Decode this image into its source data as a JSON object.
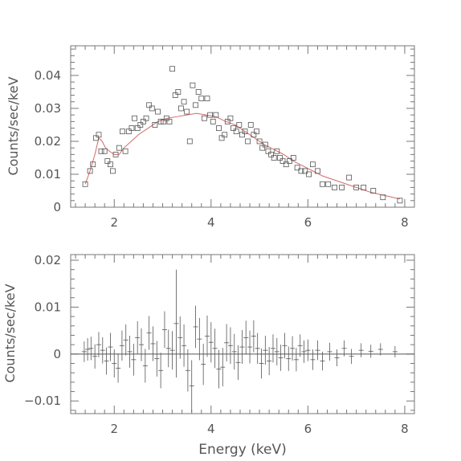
{
  "chart_data": [
    {
      "type": "scatter",
      "ylabel": "Counts/sec/keV",
      "xlim": [
        1.1,
        8.2
      ],
      "ylim": [
        0,
        0.049
      ],
      "xticks": [
        2,
        4,
        6,
        8
      ],
      "yticks": [
        0,
        0.01,
        0.02,
        0.03,
        0.04
      ],
      "xticklabels": [
        "2",
        "4",
        "6",
        "8"
      ],
      "yticklabels": [
        "0",
        "0.01",
        "0.02",
        "0.03",
        "0.04"
      ],
      "colors": {
        "data": "#555555",
        "model": "#d26a6a"
      },
      "series": [
        {
          "kind": "data",
          "x": [
            1.4,
            1.5,
            1.56,
            1.62,
            1.68,
            1.73,
            1.8,
            1.86,
            1.92,
            1.97,
            2.03,
            2.1,
            2.17,
            2.23,
            2.3,
            2.36,
            2.42,
            2.48,
            2.54,
            2.6,
            2.66,
            2.72,
            2.78,
            2.84,
            2.9,
            2.96,
            3.02,
            3.08,
            3.14,
            3.2,
            3.26,
            3.32,
            3.38,
            3.44,
            3.5,
            3.56,
            3.62,
            3.68,
            3.74,
            3.8,
            3.86,
            3.92,
            3.98,
            4.04,
            4.1,
            4.16,
            4.22,
            4.28,
            4.34,
            4.4,
            4.46,
            4.52,
            4.58,
            4.64,
            4.7,
            4.76,
            4.82,
            4.88,
            4.94,
            5.0,
            5.06,
            5.12,
            5.18,
            5.24,
            5.3,
            5.36,
            5.42,
            5.48,
            5.55,
            5.62,
            5.7,
            5.78,
            5.86,
            5.94,
            6.02,
            6.1,
            6.2,
            6.3,
            6.42,
            6.55,
            6.7,
            6.85,
            7.0,
            7.15,
            7.35,
            7.55,
            7.9
          ],
          "y": [
            0.007,
            0.011,
            0.013,
            0.021,
            0.022,
            0.017,
            0.017,
            0.014,
            0.013,
            0.011,
            0.016,
            0.018,
            0.023,
            0.017,
            0.023,
            0.024,
            0.027,
            0.024,
            0.025,
            0.026,
            0.027,
            0.031,
            0.03,
            0.025,
            0.029,
            0.026,
            0.026,
            0.027,
            0.026,
            0.042,
            0.034,
            0.035,
            0.03,
            0.032,
            0.029,
            0.02,
            0.037,
            0.031,
            0.035,
            0.033,
            0.027,
            0.033,
            0.028,
            0.026,
            0.028,
            0.024,
            0.021,
            0.022,
            0.026,
            0.027,
            0.024,
            0.023,
            0.025,
            0.022,
            0.023,
            0.02,
            0.025,
            0.022,
            0.023,
            0.02,
            0.018,
            0.019,
            0.017,
            0.016,
            0.015,
            0.017,
            0.015,
            0.014,
            0.013,
            0.014,
            0.015,
            0.012,
            0.011,
            0.011,
            0.01,
            0.013,
            0.011,
            0.007,
            0.007,
            0.006,
            0.006,
            0.009,
            0.006,
            0.006,
            0.005,
            0.003,
            0.002
          ]
        },
        {
          "kind": "model",
          "x": [
            1.4,
            1.5,
            1.6,
            1.68,
            1.75,
            1.82,
            1.9,
            2.0,
            2.1,
            2.2,
            2.35,
            2.5,
            2.7,
            2.9,
            3.1,
            3.3,
            3.5,
            3.7,
            3.9,
            4.1,
            4.3,
            4.5,
            4.7,
            4.9,
            5.1,
            5.3,
            5.5,
            5.7,
            5.9,
            6.1,
            6.3,
            6.5,
            6.7,
            7.0,
            7.3,
            7.6,
            7.9
          ],
          "y": [
            0.007,
            0.011,
            0.016,
            0.021,
            0.02,
            0.018,
            0.017,
            0.016,
            0.016,
            0.018,
            0.02,
            0.022,
            0.024,
            0.026,
            0.027,
            0.0275,
            0.028,
            0.0285,
            0.028,
            0.0275,
            0.026,
            0.025,
            0.023,
            0.021,
            0.019,
            0.0175,
            0.016,
            0.014,
            0.0125,
            0.011,
            0.0095,
            0.0085,
            0.0075,
            0.006,
            0.0045,
            0.0035,
            0.0025
          ]
        }
      ]
    },
    {
      "type": "scatter",
      "xlabel": "Energy (keV)",
      "ylabel": "Counts/sec/keV",
      "xlim": [
        1.1,
        8.2
      ],
      "ylim": [
        -0.0127,
        0.0212
      ],
      "xticks": [
        2,
        4,
        6,
        8
      ],
      "yticks": [
        -0.01,
        0,
        0.01,
        0.02
      ],
      "xticklabels": [
        "2",
        "4",
        "6",
        "8"
      ],
      "yticklabels": [
        "−0.01",
        "0",
        "0.01",
        "0.02"
      ],
      "reference_line": 0,
      "colors": {
        "data": "#555555",
        "reference": "#555555"
      },
      "series": [
        {
          "kind": "residuals",
          "x": [
            1.38,
            1.45,
            1.52,
            1.6,
            1.68,
            1.76,
            1.84,
            1.92,
            2.0,
            2.08,
            2.16,
            2.24,
            2.32,
            2.4,
            2.48,
            2.56,
            2.64,
            2.72,
            2.8,
            2.88,
            2.96,
            3.04,
            3.12,
            3.2,
            3.28,
            3.36,
            3.44,
            3.52,
            3.6,
            3.68,
            3.76,
            3.84,
            3.92,
            4.0,
            4.08,
            4.16,
            4.24,
            4.32,
            4.4,
            4.48,
            4.56,
            4.64,
            4.72,
            4.8,
            4.88,
            4.96,
            5.04,
            5.12,
            5.2,
            5.28,
            5.36,
            5.44,
            5.52,
            5.6,
            5.68,
            5.76,
            5.84,
            5.92,
            6.0,
            6.1,
            6.2,
            6.3,
            6.45,
            6.6,
            6.75,
            6.9,
            7.1,
            7.3,
            7.5,
            7.8
          ],
          "y": [
            0.0005,
            0.001,
            0.0012,
            -0.0005,
            0.002,
            0.0008,
            -0.0015,
            0.0015,
            -0.002,
            -0.003,
            0.0018,
            0.003,
            0.0005,
            -0.0012,
            0.0035,
            0.002,
            -0.0025,
            0.0045,
            0.0022,
            -0.001,
            -0.0035,
            0.0052,
            0.0012,
            0.0008,
            0.0065,
            0.0035,
            0.0018,
            -0.0035,
            -0.0068,
            0.0058,
            0.0032,
            -0.0022,
            0.0038,
            0.0025,
            0.0012,
            -0.0032,
            -0.0028,
            0.0024,
            0.0018,
            0.0005,
            -0.0018,
            0.0015,
            0.0035,
            0.0015,
            0.0038,
            0.0012,
            -0.002,
            0.0008,
            -0.0015,
            0.0012,
            0.0005,
            -0.0008,
            0.0018,
            -0.001,
            0.0012,
            -0.0012,
            0.0018,
            0.0005,
            0.0008,
            -0.0012,
            0.0008,
            -0.0015,
            0.0005,
            -0.0008,
            0.0012,
            -0.0005,
            0.0008,
            0.0006,
            0.001,
            0.0005
          ],
          "error": [
            0.0022,
            0.0024,
            0.0025,
            0.0026,
            0.0027,
            0.0028,
            0.0029,
            0.003,
            0.003,
            0.0031,
            0.0032,
            0.0033,
            0.0034,
            0.0034,
            0.0035,
            0.0035,
            0.0036,
            0.0036,
            0.0037,
            0.0038,
            0.0038,
            0.0039,
            0.004,
            0.0041,
            0.0115,
            0.0045,
            0.0045,
            0.0045,
            0.0055,
            0.0045,
            0.0045,
            0.0044,
            0.0044,
            0.0043,
            0.0042,
            0.0041,
            0.0041,
            0.004,
            0.0039,
            0.0038,
            0.0037,
            0.0036,
            0.0036,
            0.0035,
            0.0034,
            0.0033,
            0.0032,
            0.0031,
            0.003,
            0.003,
            0.0029,
            0.0028,
            0.0027,
            0.0026,
            0.0026,
            0.0025,
            0.0024,
            0.0024,
            0.0023,
            0.0022,
            0.0021,
            0.002,
            0.0019,
            0.0018,
            0.0017,
            0.0016,
            0.0015,
            0.0014,
            0.0013,
            0.0012
          ]
        }
      ]
    }
  ]
}
